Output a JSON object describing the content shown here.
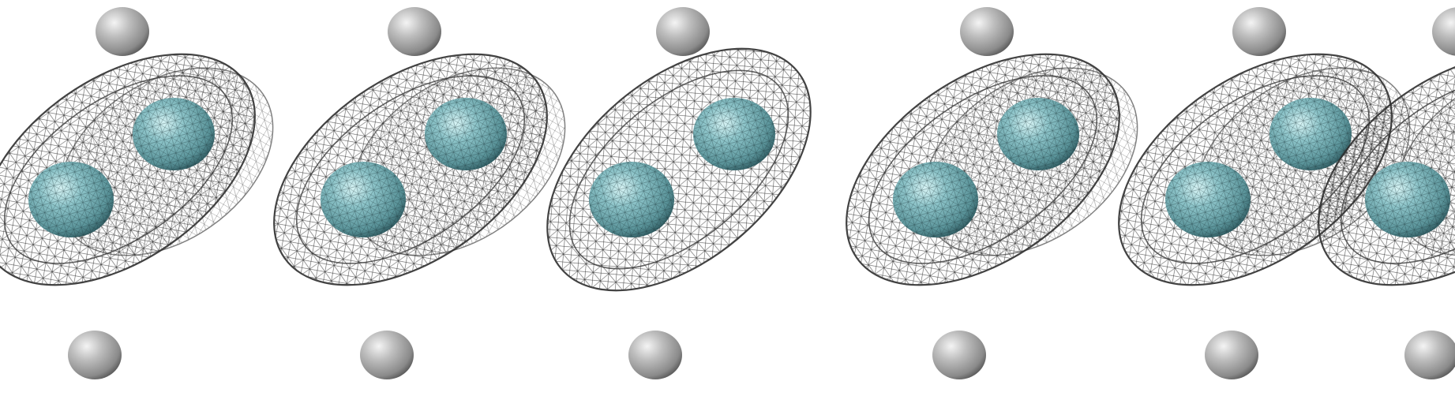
{
  "scene": {
    "background": "#ffffff",
    "atom_colors": {
      "heavy_atom": "#6ea8ae",
      "heavy_atom_highlight": "#d6f3f4",
      "heavy_atom_shadow": "#2f5a60",
      "hydrogen": "#a9a9a9",
      "hydrogen_highlight": "#f4f4f4",
      "hydrogen_shadow": "#606060",
      "mesh_dark": "#2e2e2e",
      "mesh_light": "#6a6a6a"
    },
    "molecule_count": 6,
    "molecule_description_icon": "molecular-orbital-wireframe"
  }
}
